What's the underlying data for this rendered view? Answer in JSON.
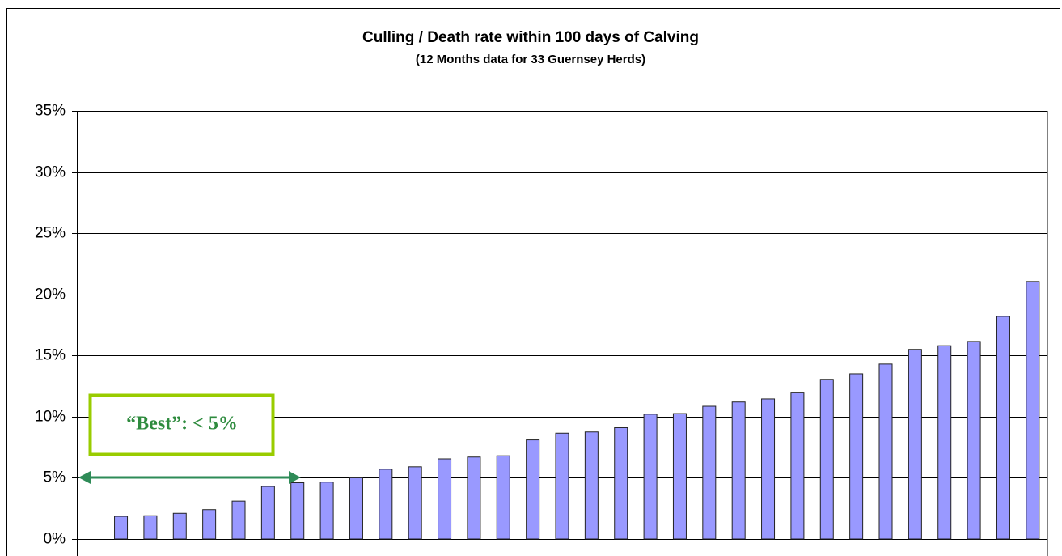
{
  "chart_data": {
    "type": "bar",
    "title": "Culling / Death rate within 100 days of Calving",
    "subtitle": "(12 Months data for 33 Guernsey Herds)",
    "annotation": "“Best”: < 5%",
    "categories": [
      null,
      null,
      null,
      null,
      null,
      null,
      null,
      null,
      null,
      null,
      null,
      null,
      null,
      null,
      null,
      null,
      null,
      null,
      null,
      null,
      null,
      null,
      null,
      null,
      null,
      null,
      null,
      null,
      null,
      null,
      null,
      null,
      null
    ],
    "values": [
      0,
      1.85,
      1.9,
      2.1,
      2.4,
      3.1,
      4.3,
      4.6,
      4.65,
      5.0,
      5.7,
      5.9,
      6.55,
      6.7,
      6.8,
      8.1,
      8.65,
      8.75,
      9.1,
      10.2,
      10.25,
      10.85,
      11.2,
      11.45,
      12.0,
      13.05,
      13.5,
      14.3,
      15.5,
      15.8,
      16.15,
      18.2,
      21.05
    ],
    "color": "#9999ff",
    "ylim": [
      0,
      35
    ],
    "yticks": [
      {
        "value": 0,
        "label": "0%"
      },
      {
        "value": 5,
        "label": "5%"
      },
      {
        "value": 10,
        "label": "10%"
      },
      {
        "value": 15,
        "label": "15%"
      },
      {
        "value": 20,
        "label": "20%"
      },
      {
        "value": 25,
        "label": "25%"
      },
      {
        "value": 30,
        "label": "30%"
      },
      {
        "value": 35,
        "label": "35%"
      }
    ],
    "grid": true
  }
}
